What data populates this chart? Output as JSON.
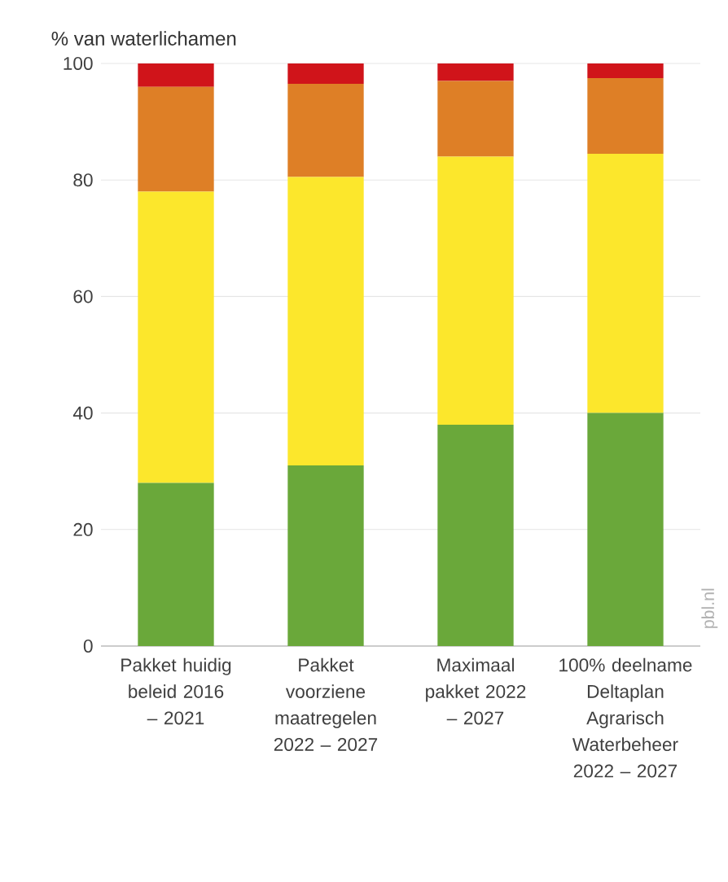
{
  "chart_data": {
    "type": "bar",
    "stacked": true,
    "ylabel": "% van waterlichamen",
    "categories": [
      "Pakket huidig beleid 2016 – 2021",
      "Pakket voorziene maatregelen 2022 – 2027",
      "Maximaal pakket 2022 – 2027",
      "100% deelname Deltaplan Agrarisch Waterbeheer 2022 – 2027"
    ],
    "series": [
      {
        "color": "#6aa83a",
        "values": [
          28,
          31,
          38,
          40
        ]
      },
      {
        "color": "#fce72c",
        "values": [
          50,
          49.5,
          46,
          44.5
        ]
      },
      {
        "color": "#de7f26",
        "values": [
          18,
          16,
          13,
          13
        ]
      },
      {
        "color": "#d0141a",
        "values": [
          4,
          3.5,
          3,
          2.5
        ]
      }
    ],
    "ylim": [
      0,
      100
    ],
    "yticks": [
      0,
      20,
      40,
      60,
      80,
      100
    ],
    "grid": "y",
    "annotations": [
      "pbl.nl"
    ]
  }
}
